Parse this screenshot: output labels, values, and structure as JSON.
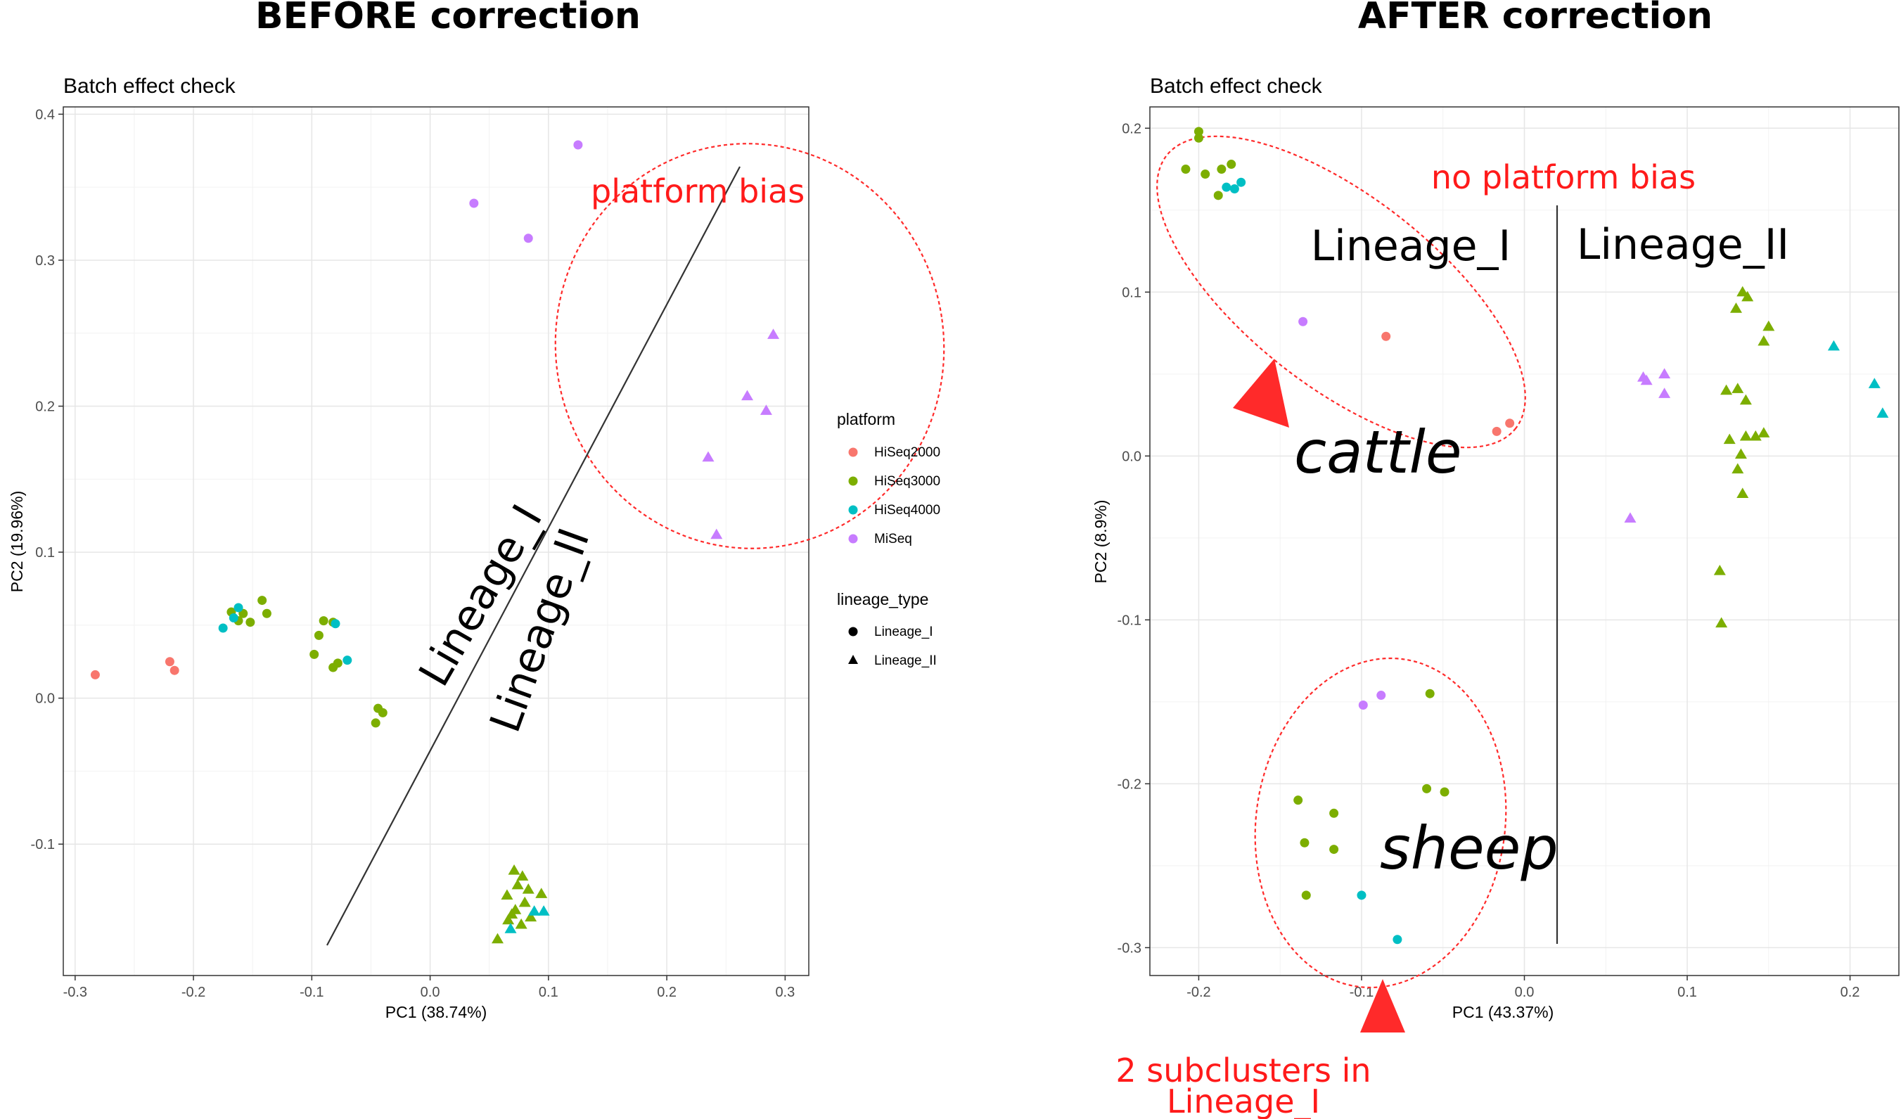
{
  "figure": {
    "left_heading": "BEFORE correction",
    "right_heading": "AFTER correction"
  },
  "legend": {
    "platform_title": "platform",
    "platform_items": [
      {
        "label": "HiSeq2000",
        "color": "#F8766D"
      },
      {
        "label": "HiSeq3000",
        "color": "#7CAE00"
      },
      {
        "label": "HiSeq4000",
        "color": "#00BFC4"
      },
      {
        "label": "MiSeq",
        "color": "#C77CFF"
      }
    ],
    "lineage_title": "lineage_type",
    "lineage_items": [
      {
        "label": "Lineage_I",
        "shape": "circle"
      },
      {
        "label": "Lineage_II",
        "shape": "triangle"
      }
    ]
  },
  "annotations": {
    "platform_bias": "platform bias",
    "no_platform_bias": "no platform bias",
    "lineage_i": "Lineage_I",
    "lineage_ii": "Lineage_II",
    "cattle": "cattle",
    "sheep": "sheep",
    "subclusters_line1": "2 subclusters in",
    "subclusters_line2": "Lineage_I"
  },
  "chart_data": [
    {
      "type": "scatter",
      "title": "Batch effect check",
      "xlabel": "PC1 (38.74%)",
      "ylabel": "PC2 (19.96%)",
      "xlim": [
        -0.31,
        0.32
      ],
      "ylim": [
        -0.19,
        0.405
      ],
      "xticks": [
        -0.3,
        -0.2,
        -0.1,
        0.0,
        0.1,
        0.2,
        0.3
      ],
      "xtick_labels": [
        "-0.3",
        "-0.2",
        "-0.1",
        "0.0",
        "0.1",
        "0.2",
        "0.3"
      ],
      "yticks": [
        -0.1,
        0.0,
        0.1,
        0.2,
        0.3,
        0.4
      ],
      "ytick_labels": [
        "-0.1",
        "0.0",
        "0.1",
        "0.2",
        "0.3",
        "0.4"
      ],
      "grid": true,
      "legend_position": "right",
      "points": [
        {
          "x": -0.283,
          "y": 0.016,
          "platform": "HiSeq2000",
          "lineage": "Lineage_I"
        },
        {
          "x": -0.22,
          "y": 0.025,
          "platform": "HiSeq2000",
          "lineage": "Lineage_I"
        },
        {
          "x": -0.216,
          "y": 0.019,
          "platform": "HiSeq2000",
          "lineage": "Lineage_I"
        },
        {
          "x": -0.168,
          "y": 0.059,
          "platform": "HiSeq3000",
          "lineage": "Lineage_I"
        },
        {
          "x": -0.162,
          "y": 0.053,
          "platform": "HiSeq3000",
          "lineage": "Lineage_I"
        },
        {
          "x": -0.158,
          "y": 0.058,
          "platform": "HiSeq3000",
          "lineage": "Lineage_I"
        },
        {
          "x": -0.152,
          "y": 0.052,
          "platform": "HiSeq3000",
          "lineage": "Lineage_I"
        },
        {
          "x": -0.142,
          "y": 0.067,
          "platform": "HiSeq3000",
          "lineage": "Lineage_I"
        },
        {
          "x": -0.138,
          "y": 0.058,
          "platform": "HiSeq3000",
          "lineage": "Lineage_I"
        },
        {
          "x": -0.175,
          "y": 0.048,
          "platform": "HiSeq4000",
          "lineage": "Lineage_I"
        },
        {
          "x": -0.166,
          "y": 0.055,
          "platform": "HiSeq4000",
          "lineage": "Lineage_I"
        },
        {
          "x": -0.162,
          "y": 0.062,
          "platform": "HiSeq4000",
          "lineage": "Lineage_I"
        },
        {
          "x": -0.098,
          "y": 0.03,
          "platform": "HiSeq3000",
          "lineage": "Lineage_I"
        },
        {
          "x": -0.094,
          "y": 0.043,
          "platform": "HiSeq3000",
          "lineage": "Lineage_I"
        },
        {
          "x": -0.09,
          "y": 0.053,
          "platform": "HiSeq3000",
          "lineage": "Lineage_I"
        },
        {
          "x": -0.082,
          "y": 0.052,
          "platform": "HiSeq3000",
          "lineage": "Lineage_I"
        },
        {
          "x": -0.082,
          "y": 0.021,
          "platform": "HiSeq3000",
          "lineage": "Lineage_I"
        },
        {
          "x": -0.078,
          "y": 0.024,
          "platform": "HiSeq3000",
          "lineage": "Lineage_I"
        },
        {
          "x": -0.08,
          "y": 0.051,
          "platform": "HiSeq4000",
          "lineage": "Lineage_I"
        },
        {
          "x": -0.07,
          "y": 0.026,
          "platform": "HiSeq4000",
          "lineage": "Lineage_I"
        },
        {
          "x": -0.044,
          "y": -0.007,
          "platform": "HiSeq3000",
          "lineage": "Lineage_I"
        },
        {
          "x": -0.04,
          "y": -0.01,
          "platform": "HiSeq3000",
          "lineage": "Lineage_I"
        },
        {
          "x": -0.046,
          "y": -0.017,
          "platform": "HiSeq3000",
          "lineage": "Lineage_I"
        },
        {
          "x": 0.037,
          "y": 0.339,
          "platform": "MiSeq",
          "lineage": "Lineage_I"
        },
        {
          "x": 0.083,
          "y": 0.315,
          "platform": "MiSeq",
          "lineage": "Lineage_I"
        },
        {
          "x": 0.125,
          "y": 0.379,
          "platform": "MiSeq",
          "lineage": "Lineage_I"
        },
        {
          "x": 0.29,
          "y": 0.249,
          "platform": "MiSeq",
          "lineage": "Lineage_II"
        },
        {
          "x": 0.268,
          "y": 0.207,
          "platform": "MiSeq",
          "lineage": "Lineage_II"
        },
        {
          "x": 0.284,
          "y": 0.197,
          "platform": "MiSeq",
          "lineage": "Lineage_II"
        },
        {
          "x": 0.235,
          "y": 0.165,
          "platform": "MiSeq",
          "lineage": "Lineage_II"
        },
        {
          "x": 0.242,
          "y": 0.112,
          "platform": "MiSeq",
          "lineage": "Lineage_II"
        },
        {
          "x": 0.057,
          "y": -0.165,
          "platform": "HiSeq3000",
          "lineage": "Lineage_II"
        },
        {
          "x": 0.066,
          "y": -0.152,
          "platform": "HiSeq3000",
          "lineage": "Lineage_II"
        },
        {
          "x": 0.072,
          "y": -0.145,
          "platform": "HiSeq3000",
          "lineage": "Lineage_II"
        },
        {
          "x": 0.065,
          "y": -0.135,
          "platform": "HiSeq3000",
          "lineage": "Lineage_II"
        },
        {
          "x": 0.074,
          "y": -0.128,
          "platform": "HiSeq3000",
          "lineage": "Lineage_II"
        },
        {
          "x": 0.08,
          "y": -0.14,
          "platform": "HiSeq3000",
          "lineage": "Lineage_II"
        },
        {
          "x": 0.083,
          "y": -0.131,
          "platform": "HiSeq3000",
          "lineage": "Lineage_II"
        },
        {
          "x": 0.071,
          "y": -0.118,
          "platform": "HiSeq3000",
          "lineage": "Lineage_II"
        },
        {
          "x": 0.078,
          "y": -0.122,
          "platform": "HiSeq3000",
          "lineage": "Lineage_II"
        },
        {
          "x": 0.077,
          "y": -0.155,
          "platform": "HiSeq3000",
          "lineage": "Lineage_II"
        },
        {
          "x": 0.069,
          "y": -0.148,
          "platform": "HiSeq3000",
          "lineage": "Lineage_II"
        },
        {
          "x": 0.085,
          "y": -0.15,
          "platform": "HiSeq3000",
          "lineage": "Lineage_II"
        },
        {
          "x": 0.094,
          "y": -0.134,
          "platform": "HiSeq3000",
          "lineage": "Lineage_II"
        },
        {
          "x": 0.068,
          "y": -0.158,
          "platform": "HiSeq4000",
          "lineage": "Lineage_II"
        },
        {
          "x": 0.088,
          "y": -0.146,
          "platform": "HiSeq4000",
          "lineage": "Lineage_II"
        },
        {
          "x": 0.096,
          "y": -0.146,
          "platform": "HiSeq4000",
          "lineage": "Lineage_II"
        }
      ]
    },
    {
      "type": "scatter",
      "title": "Batch effect check",
      "xlabel": "PC1 (43.37%)",
      "ylabel": "PC2 (8.9%)",
      "xlim": [
        -0.23,
        0.23
      ],
      "ylim": [
        -0.317,
        0.213
      ],
      "xticks": [
        -0.2,
        -0.1,
        0.0,
        0.1,
        0.2
      ],
      "xtick_labels": [
        "-0.2",
        "-0.1",
        "0.0",
        "0.1",
        "0.2"
      ],
      "yticks": [
        -0.3,
        -0.2,
        -0.1,
        0.0,
        0.1,
        0.2
      ],
      "ytick_labels": [
        "-0.3",
        "-0.2",
        "-0.1",
        "0.0",
        "0.1",
        "0.2"
      ],
      "grid": true,
      "legend_position": "none",
      "points": [
        {
          "x": -0.2,
          "y": 0.198,
          "platform": "HiSeq3000",
          "lineage": "Lineage_I"
        },
        {
          "x": -0.2,
          "y": 0.194,
          "platform": "HiSeq3000",
          "lineage": "Lineage_I"
        },
        {
          "x": -0.208,
          "y": 0.175,
          "platform": "HiSeq3000",
          "lineage": "Lineage_I"
        },
        {
          "x": -0.196,
          "y": 0.172,
          "platform": "HiSeq3000",
          "lineage": "Lineage_I"
        },
        {
          "x": -0.186,
          "y": 0.175,
          "platform": "HiSeq3000",
          "lineage": "Lineage_I"
        },
        {
          "x": -0.18,
          "y": 0.178,
          "platform": "HiSeq3000",
          "lineage": "Lineage_I"
        },
        {
          "x": -0.188,
          "y": 0.159,
          "platform": "HiSeq3000",
          "lineage": "Lineage_I"
        },
        {
          "x": -0.183,
          "y": 0.164,
          "platform": "HiSeq4000",
          "lineage": "Lineage_I"
        },
        {
          "x": -0.178,
          "y": 0.163,
          "platform": "HiSeq4000",
          "lineage": "Lineage_I"
        },
        {
          "x": -0.174,
          "y": 0.167,
          "platform": "HiSeq4000",
          "lineage": "Lineage_I"
        },
        {
          "x": -0.136,
          "y": 0.082,
          "platform": "MiSeq",
          "lineage": "Lineage_I"
        },
        {
          "x": -0.085,
          "y": 0.073,
          "platform": "HiSeq2000",
          "lineage": "Lineage_I"
        },
        {
          "x": -0.017,
          "y": 0.015,
          "platform": "HiSeq2000",
          "lineage": "Lineage_I"
        },
        {
          "x": -0.009,
          "y": 0.02,
          "platform": "HiSeq2000",
          "lineage": "Lineage_I"
        },
        {
          "x": -0.099,
          "y": -0.152,
          "platform": "MiSeq",
          "lineage": "Lineage_I"
        },
        {
          "x": -0.088,
          "y": -0.146,
          "platform": "MiSeq",
          "lineage": "Lineage_I"
        },
        {
          "x": -0.058,
          "y": -0.145,
          "platform": "HiSeq3000",
          "lineage": "Lineage_I"
        },
        {
          "x": -0.139,
          "y": -0.21,
          "platform": "HiSeq3000",
          "lineage": "Lineage_I"
        },
        {
          "x": -0.117,
          "y": -0.218,
          "platform": "HiSeq3000",
          "lineage": "Lineage_I"
        },
        {
          "x": -0.135,
          "y": -0.236,
          "platform": "HiSeq3000",
          "lineage": "Lineage_I"
        },
        {
          "x": -0.117,
          "y": -0.24,
          "platform": "HiSeq3000",
          "lineage": "Lineage_I"
        },
        {
          "x": -0.06,
          "y": -0.203,
          "platform": "HiSeq3000",
          "lineage": "Lineage_I"
        },
        {
          "x": -0.049,
          "y": -0.205,
          "platform": "HiSeq3000",
          "lineage": "Lineage_I"
        },
        {
          "x": -0.134,
          "y": -0.268,
          "platform": "HiSeq3000",
          "lineage": "Lineage_I"
        },
        {
          "x": -0.1,
          "y": -0.268,
          "platform": "HiSeq4000",
          "lineage": "Lineage_I"
        },
        {
          "x": -0.078,
          "y": -0.295,
          "platform": "HiSeq4000",
          "lineage": "Lineage_I"
        },
        {
          "x": 0.065,
          "y": -0.038,
          "platform": "MiSeq",
          "lineage": "Lineage_II"
        },
        {
          "x": 0.073,
          "y": 0.048,
          "platform": "MiSeq",
          "lineage": "Lineage_II"
        },
        {
          "x": 0.075,
          "y": 0.046,
          "platform": "MiSeq",
          "lineage": "Lineage_II"
        },
        {
          "x": 0.086,
          "y": 0.05,
          "platform": "MiSeq",
          "lineage": "Lineage_II"
        },
        {
          "x": 0.086,
          "y": 0.038,
          "platform": "MiSeq",
          "lineage": "Lineage_II"
        },
        {
          "x": 0.134,
          "y": 0.1,
          "platform": "HiSeq3000",
          "lineage": "Lineage_II"
        },
        {
          "x": 0.137,
          "y": 0.097,
          "platform": "HiSeq3000",
          "lineage": "Lineage_II"
        },
        {
          "x": 0.13,
          "y": 0.09,
          "platform": "HiSeq3000",
          "lineage": "Lineage_II"
        },
        {
          "x": 0.147,
          "y": 0.07,
          "platform": "HiSeq3000",
          "lineage": "Lineage_II"
        },
        {
          "x": 0.15,
          "y": 0.079,
          "platform": "HiSeq3000",
          "lineage": "Lineage_II"
        },
        {
          "x": 0.124,
          "y": 0.04,
          "platform": "HiSeq3000",
          "lineage": "Lineage_II"
        },
        {
          "x": 0.131,
          "y": 0.041,
          "platform": "HiSeq3000",
          "lineage": "Lineage_II"
        },
        {
          "x": 0.136,
          "y": 0.034,
          "platform": "HiSeq3000",
          "lineage": "Lineage_II"
        },
        {
          "x": 0.126,
          "y": 0.01,
          "platform": "HiSeq3000",
          "lineage": "Lineage_II"
        },
        {
          "x": 0.136,
          "y": 0.012,
          "platform": "HiSeq3000",
          "lineage": "Lineage_II"
        },
        {
          "x": 0.142,
          "y": 0.012,
          "platform": "HiSeq3000",
          "lineage": "Lineage_II"
        },
        {
          "x": 0.147,
          "y": 0.014,
          "platform": "HiSeq3000",
          "lineage": "Lineage_II"
        },
        {
          "x": 0.133,
          "y": 0.001,
          "platform": "HiSeq3000",
          "lineage": "Lineage_II"
        },
        {
          "x": 0.131,
          "y": -0.008,
          "platform": "HiSeq3000",
          "lineage": "Lineage_II"
        },
        {
          "x": 0.134,
          "y": -0.023,
          "platform": "HiSeq3000",
          "lineage": "Lineage_II"
        },
        {
          "x": 0.12,
          "y": -0.07,
          "platform": "HiSeq3000",
          "lineage": "Lineage_II"
        },
        {
          "x": 0.121,
          "y": -0.102,
          "platform": "HiSeq3000",
          "lineage": "Lineage_II"
        },
        {
          "x": 0.19,
          "y": 0.067,
          "platform": "HiSeq4000",
          "lineage": "Lineage_II"
        },
        {
          "x": 0.215,
          "y": 0.044,
          "platform": "HiSeq4000",
          "lineage": "Lineage_II"
        },
        {
          "x": 0.22,
          "y": 0.026,
          "platform": "HiSeq4000",
          "lineage": "Lineage_II"
        }
      ]
    }
  ]
}
